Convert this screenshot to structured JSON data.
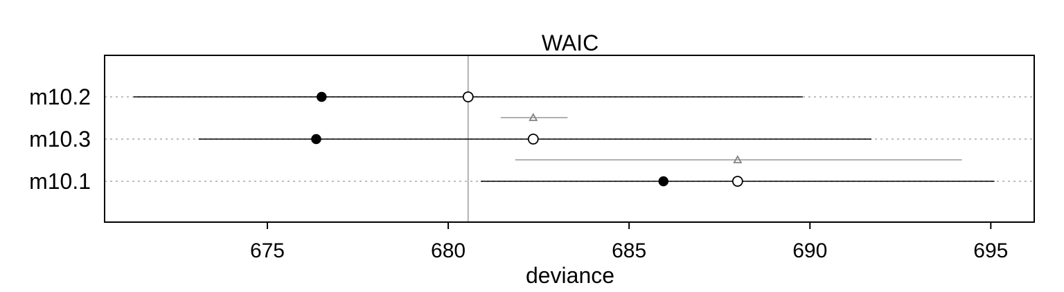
{
  "chart_data": {
    "type": "dotplot",
    "title": "WAIC",
    "xlabel": "deviance",
    "ylabel": "",
    "xlim": [
      670.5,
      696.2
    ],
    "xticks": [
      675,
      680,
      685,
      690,
      695
    ],
    "xtick_labels": [
      "675",
      "680",
      "685",
      "690",
      "695"
    ],
    "reference_line": 680.55,
    "grid": "horizontal-dotted",
    "models": [
      {
        "name": "m10.2",
        "in_sample": 676.5,
        "waic": 680.55,
        "lower": 671.3,
        "upper": 689.8
      },
      {
        "name": "m10.3",
        "in_sample": 676.35,
        "waic": 682.35,
        "lower": 673.1,
        "upper": 691.7
      },
      {
        "name": "m10.1",
        "in_sample": 685.95,
        "waic": 688.0,
        "lower": 680.9,
        "upper": 695.1
      }
    ],
    "differences": [
      {
        "between": [
          "m10.2",
          "m10.3"
        ],
        "value": 682.35,
        "lower": 681.45,
        "upper": 683.3
      },
      {
        "between": [
          "m10.3",
          "m10.1"
        ],
        "value": 688.0,
        "lower": 681.85,
        "upper": 694.2
      }
    ],
    "colors": {
      "main": "#000000",
      "difference": "#808080",
      "grid": "#bdbdbd"
    }
  }
}
